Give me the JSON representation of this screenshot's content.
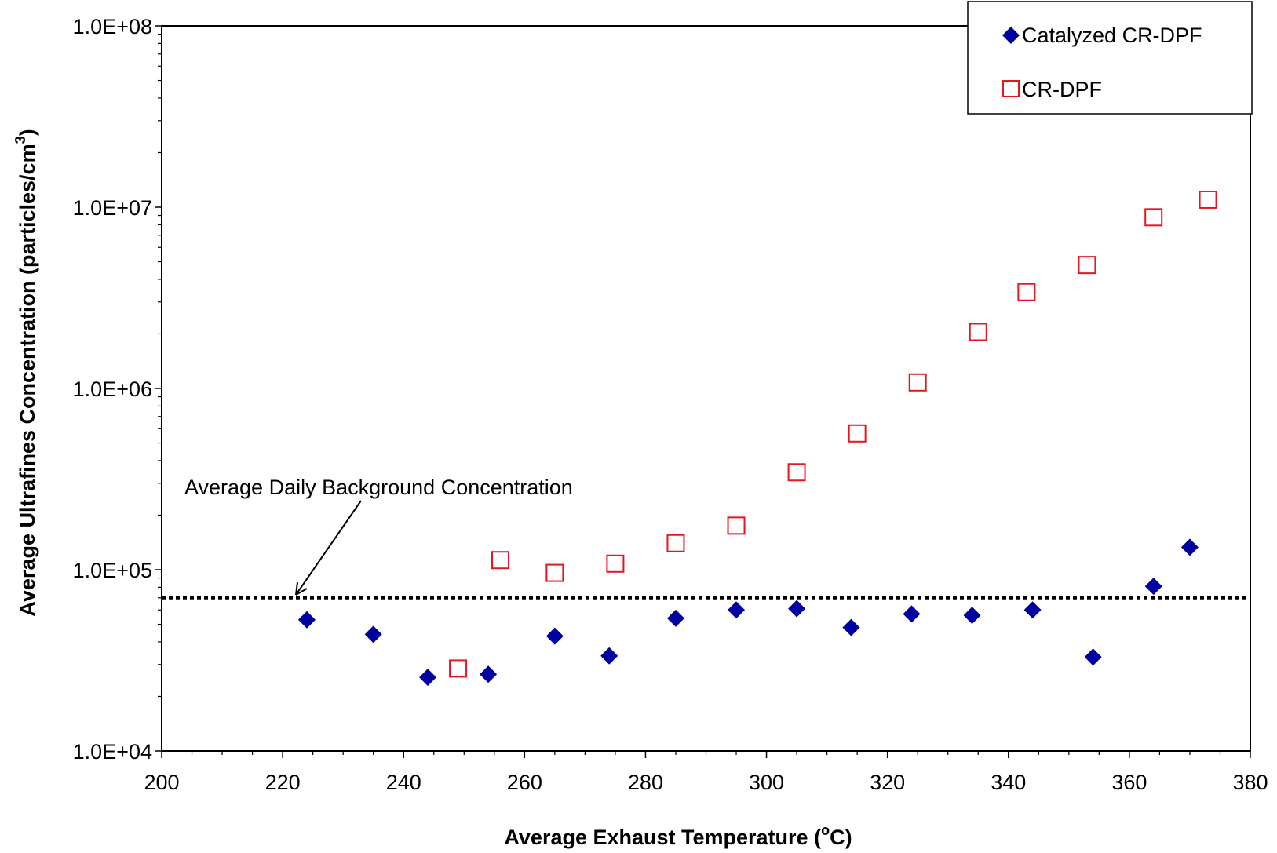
{
  "chart_data": {
    "type": "scatter",
    "x_scale": "linear",
    "y_scale": "log",
    "xlim": [
      200,
      380
    ],
    "ylim": [
      10000,
      100000000
    ],
    "x_ticks": [
      200,
      220,
      240,
      260,
      280,
      300,
      320,
      340,
      360,
      380
    ],
    "x_tick_labels": [
      "200",
      "220",
      "240",
      "260",
      "280",
      "300",
      "320",
      "340",
      "360",
      "380"
    ],
    "y_ticks": [
      10000,
      100000,
      1000000,
      10000000,
      100000000
    ],
    "y_tick_labels": [
      "1.0E+04",
      "1.0E+05",
      "1.0E+06",
      "1.0E+07",
      "1.0E+08"
    ],
    "xlabel": "Average Exhaust Temperature  (",
    "xlabel_unit": "C)",
    "xlabel_sup": "o",
    "ylabel": "Average Ultrafines Concentration (particles/cm",
    "ylabel_sup": "3",
    "ylabel_end": ")",
    "grid": false,
    "legend_position": "top-right",
    "series": [
      {
        "name": "Catalyzed CR-DPF",
        "marker": "diamond",
        "color": "#0000a0",
        "points": [
          [
            224,
            53000
          ],
          [
            235,
            44000
          ],
          [
            244,
            25500
          ],
          [
            254,
            26500
          ],
          [
            265,
            43000
          ],
          [
            274,
            33500
          ],
          [
            285,
            54000
          ],
          [
            295,
            60000
          ],
          [
            305,
            61000
          ],
          [
            314,
            48000
          ],
          [
            324,
            57000
          ],
          [
            334,
            56000
          ],
          [
            344,
            60000
          ],
          [
            354,
            33000
          ],
          [
            364,
            81000
          ],
          [
            370,
            133000
          ]
        ]
      },
      {
        "name": "CR-DPF",
        "marker": "square",
        "color": "#e8141e",
        "points": [
          [
            249,
            28500
          ],
          [
            256,
            113000
          ],
          [
            265,
            96000
          ],
          [
            275,
            108000
          ],
          [
            285,
            140000
          ],
          [
            295,
            175000
          ],
          [
            305,
            345000
          ],
          [
            315,
            565000
          ],
          [
            325,
            1080000
          ],
          [
            335,
            2050000
          ],
          [
            343,
            3400000
          ],
          [
            353,
            4800000
          ],
          [
            364,
            8800000
          ],
          [
            373,
            11000000
          ]
        ]
      }
    ],
    "reference_line": {
      "value": 70000,
      "style": "dotted",
      "label": "Average Daily Background Concentration"
    }
  }
}
